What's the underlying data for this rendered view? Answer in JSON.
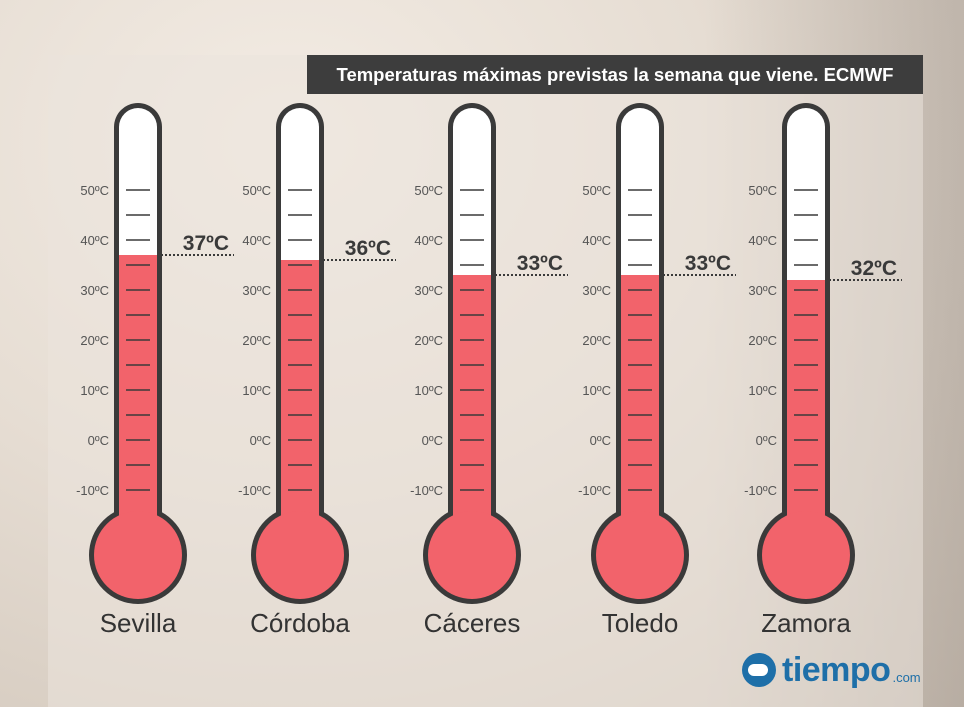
{
  "title": "Temperaturas máximas previstas la semana que viene. ECMWF",
  "brand": {
    "name": "tiempo",
    "suffix": ".com",
    "color": "#1e6fa8"
  },
  "colors": {
    "mercury": "#f2636b",
    "outline": "#3a3a3a",
    "tick": "#3a3a3a",
    "label": "#555555"
  },
  "chart_data": {
    "type": "bar",
    "title": "Temperaturas máximas previstas la semana que viene. ECMWF",
    "categories": [
      "Sevilla",
      "Córdoba",
      "Cáceres",
      "Toledo",
      "Zamora"
    ],
    "values": [
      37,
      36,
      33,
      33,
      32
    ],
    "value_labels": [
      "37ºC",
      "36ºC",
      "33ºC",
      "33ºC",
      "32ºC"
    ],
    "unit": "ºC",
    "tick_values": [
      50,
      40,
      30,
      20,
      10,
      0,
      -10
    ],
    "tick_labels": [
      "50ºC",
      "40ºC",
      "30ºC",
      "20ºC",
      "10ºC",
      "0ºC",
      "-10ºC"
    ],
    "ylim": [
      -10,
      50
    ],
    "xlabel": "",
    "ylabel": ""
  }
}
